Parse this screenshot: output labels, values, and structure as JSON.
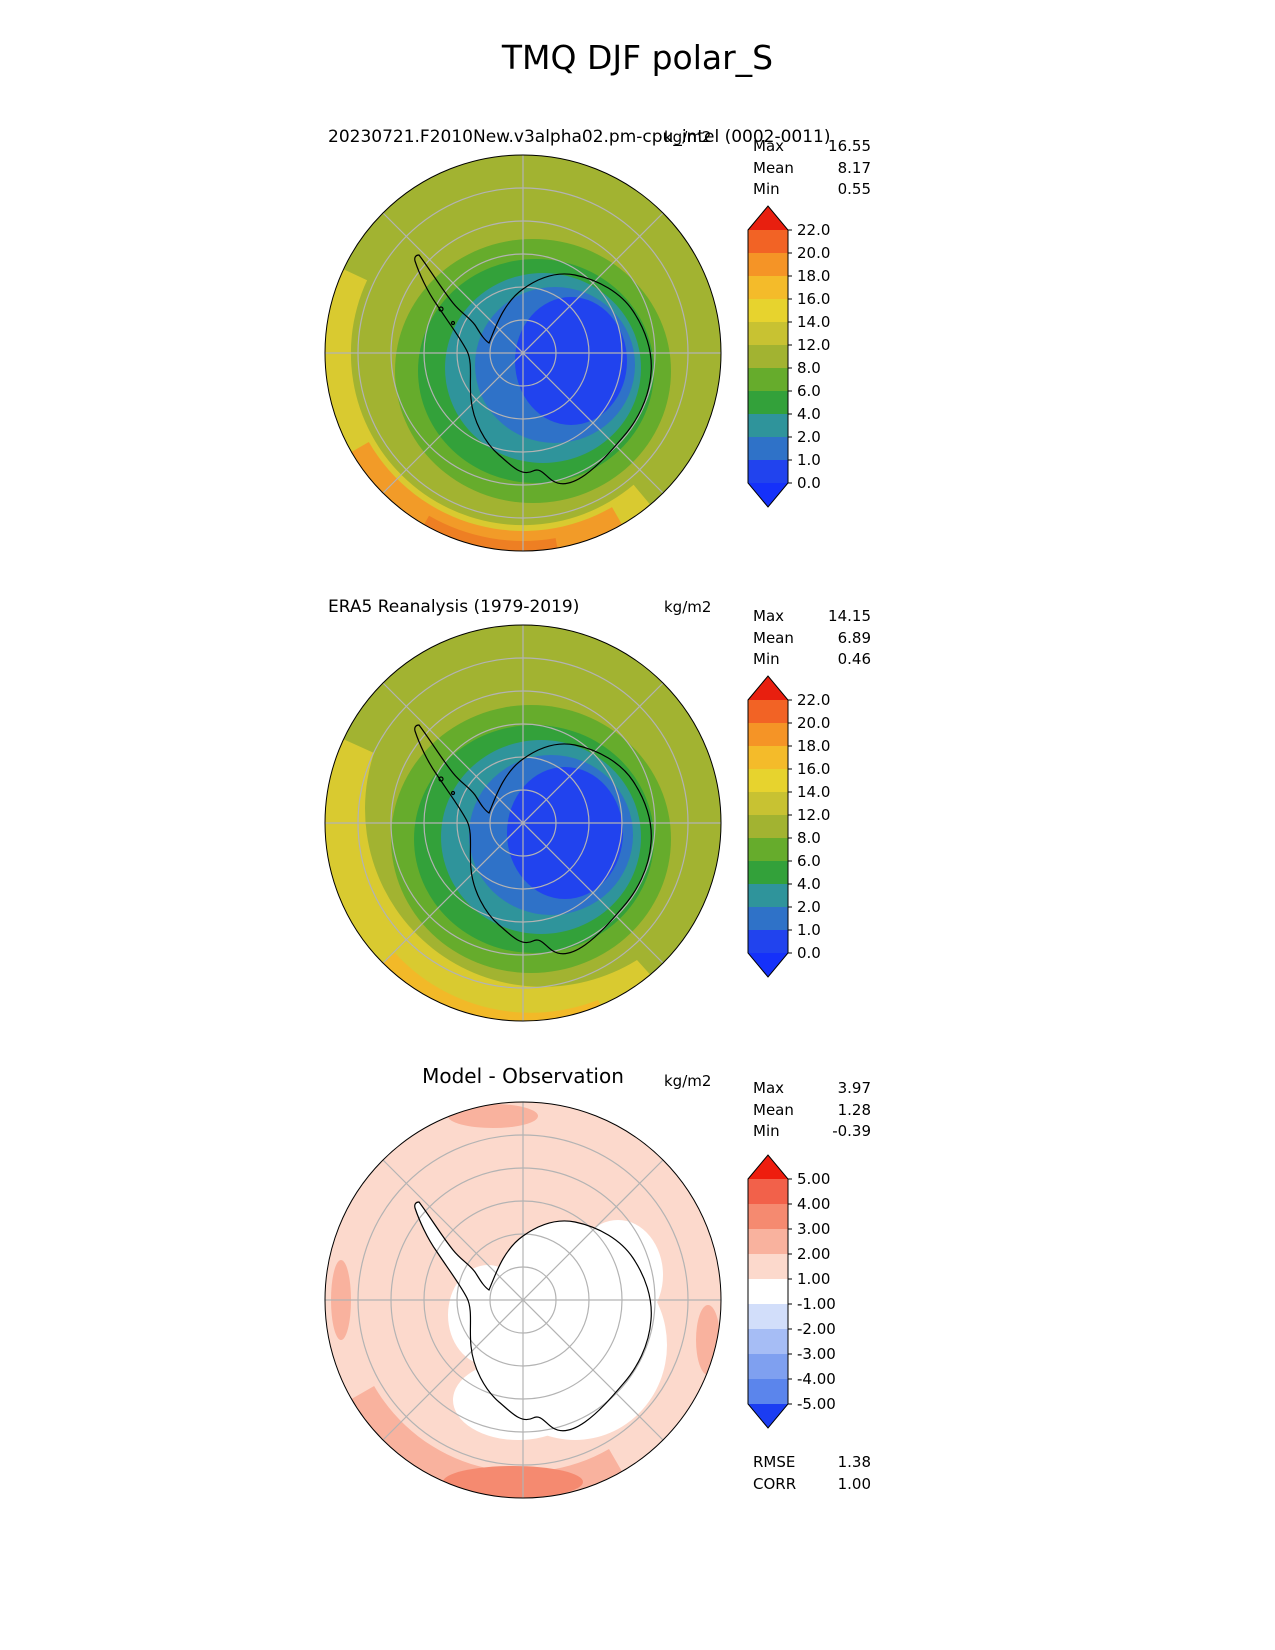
{
  "page_title": "TMQ DJF polar_S",
  "chart_data": [
    {
      "type": "heatmap",
      "projection": "polar_stereographic_south",
      "region": "polar_S",
      "title": "20230721.F2010New.v3alpha02.pm-cpu_intel (0002-0011)",
      "units": "kg/m2",
      "stats": [
        {
          "label": "Max",
          "value": "16.55"
        },
        {
          "label": "Mean",
          "value": "8.17"
        },
        {
          "label": "Min",
          "value": "0.55"
        }
      ],
      "colorbar": {
        "ticks": [
          "22.0",
          "20.0",
          "18.0",
          "16.0",
          "14.0",
          "12.0",
          "8.0",
          "6.0",
          "4.0",
          "2.0",
          "1.0",
          "0.0"
        ],
        "segment_colors": [
          "#2143ee",
          "#2f72c8",
          "#2f949b",
          "#33a13a",
          "#66ac2c",
          "#a2b331",
          "#c8c232",
          "#e7d32e",
          "#f4bb2a",
          "#f59426",
          "#f26325"
        ],
        "over_color": "#e81f0f",
        "under_color": "#1531fa"
      }
    },
    {
      "type": "heatmap",
      "projection": "polar_stereographic_south",
      "region": "polar_S",
      "title": "ERA5 Reanalysis (1979-2019)",
      "units": "kg/m2",
      "stats": [
        {
          "label": "Max",
          "value": "14.15"
        },
        {
          "label": "Mean",
          "value": "6.89"
        },
        {
          "label": "Min",
          "value": "0.46"
        }
      ],
      "colorbar": {
        "ticks": [
          "22.0",
          "20.0",
          "18.0",
          "16.0",
          "14.0",
          "12.0",
          "8.0",
          "6.0",
          "4.0",
          "2.0",
          "1.0",
          "0.0"
        ],
        "segment_colors": [
          "#2143ee",
          "#2f72c8",
          "#2f949b",
          "#33a13a",
          "#66ac2c",
          "#a2b331",
          "#c8c232",
          "#e7d32e",
          "#f4bb2a",
          "#f59426",
          "#f26325"
        ],
        "over_color": "#e81f0f",
        "under_color": "#1531fa"
      }
    },
    {
      "type": "heatmap",
      "projection": "polar_stereographic_south",
      "region": "polar_S",
      "title": "Model - Observation",
      "units": "kg/m2",
      "stats": [
        {
          "label": "Max",
          "value": "3.97"
        },
        {
          "label": "Mean",
          "value": "1.28"
        },
        {
          "label": "Min",
          "value": "-0.39"
        }
      ],
      "colorbar": {
        "ticks": [
          "5.00",
          "4.00",
          "3.00",
          "2.00",
          "1.00",
          "-1.00",
          "-2.00",
          "-3.00",
          "-4.00",
          "-5.00"
        ],
        "segment_colors": [
          "#5b85ec",
          "#7fa0f0",
          "#a6bdf5",
          "#d2defa",
          "#ffffff",
          "#fcd9cc",
          "#f9b29e",
          "#f58a70",
          "#f2614a"
        ],
        "over_color": "#ee1d0e",
        "under_color": "#1b3df2"
      },
      "metrics": [
        {
          "label": "RMSE",
          "value": "1.38"
        },
        {
          "label": "CORR",
          "value": "1.00"
        }
      ]
    }
  ]
}
